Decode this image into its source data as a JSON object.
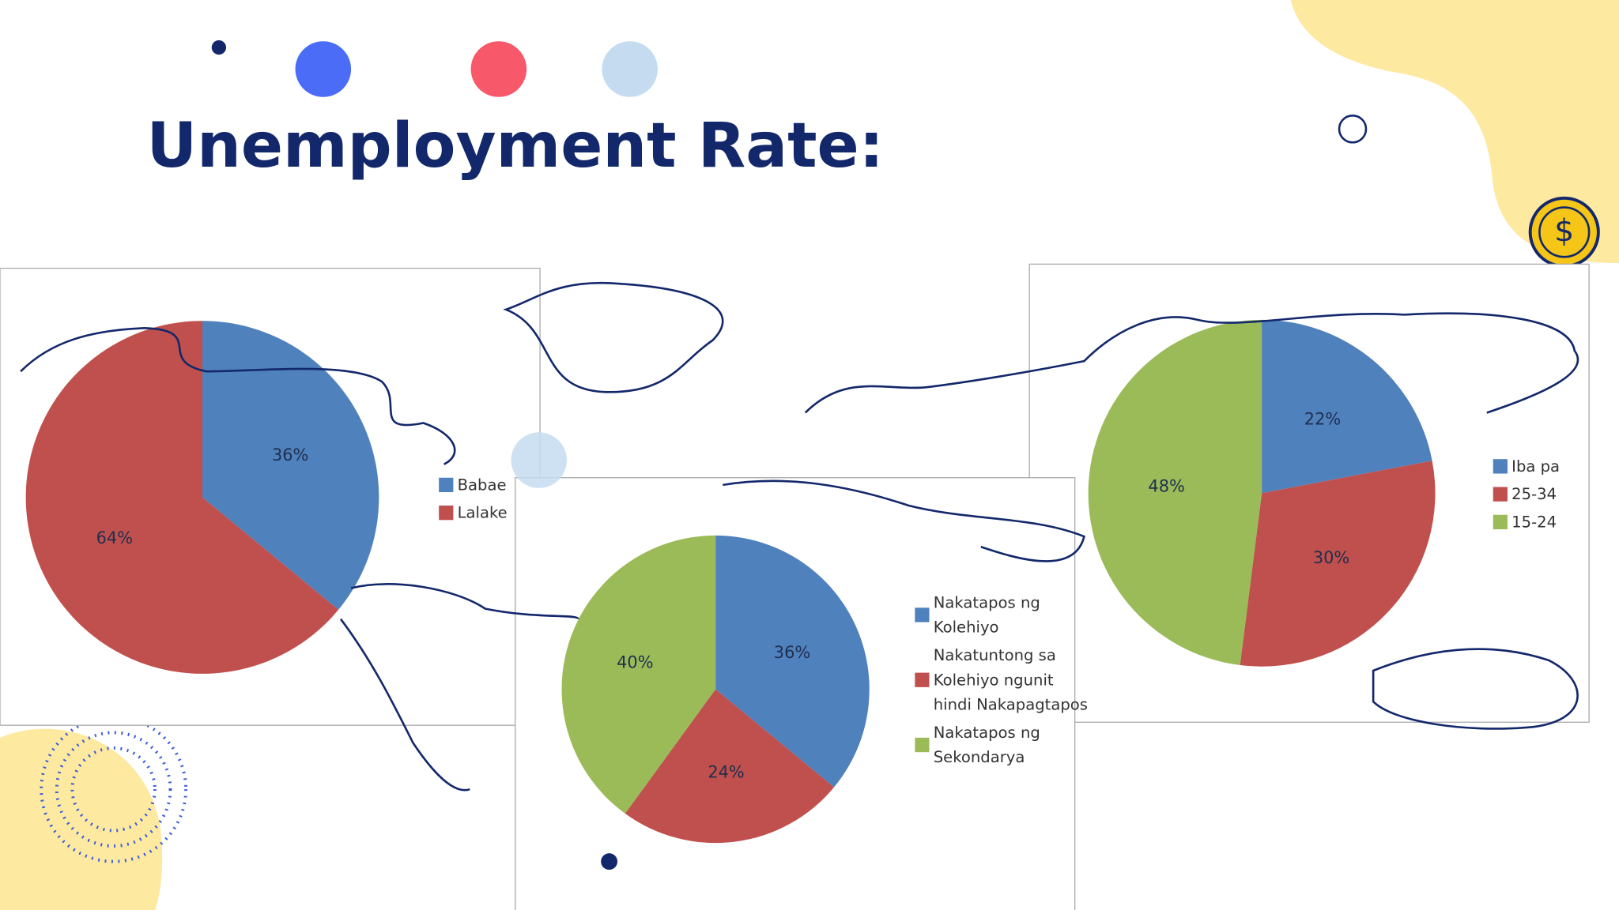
{
  "title": "Unemployment Rate:",
  "chart_data": [
    {
      "type": "pie",
      "categories": [
        "Babae",
        "Lalake"
      ],
      "values": [
        36,
        64
      ],
      "value_labels": [
        "36%",
        "64%"
      ],
      "colors": [
        "#4f81bd",
        "#c0504d"
      ]
    },
    {
      "type": "pie",
      "categories": [
        "Nakatapos ng Kolehiyo",
        "Nakatuntong sa Kolehiyo ngunit hindi Nakapagtapos",
        "Nakatapos ng Sekondarya"
      ],
      "values": [
        36,
        24,
        40
      ],
      "value_labels": [
        "36%",
        "24%",
        "40%"
      ],
      "colors": [
        "#4f81bd",
        "#c0504d",
        "#9bbb59"
      ]
    },
    {
      "type": "pie",
      "categories": [
        "Iba pa",
        "25-34",
        "15-24"
      ],
      "values": [
        22,
        30,
        48
      ],
      "value_labels": [
        "22%",
        "30%",
        "48%"
      ],
      "colors": [
        "#4f81bd",
        "#c0504d",
        "#9bbb59"
      ]
    }
  ]
}
